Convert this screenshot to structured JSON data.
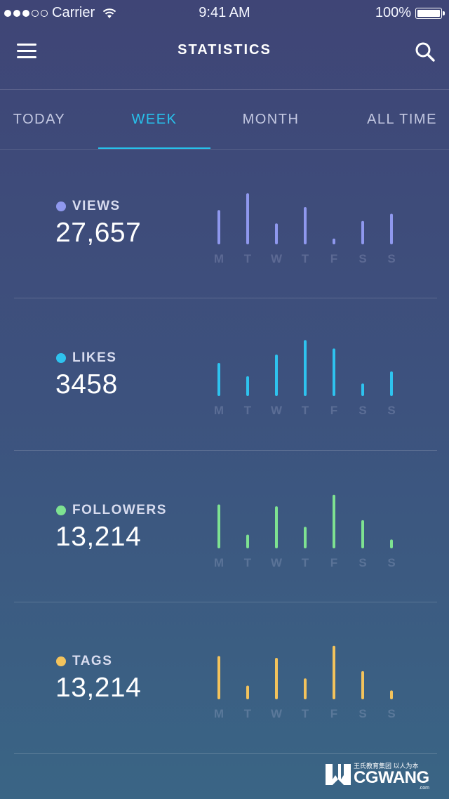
{
  "status": {
    "carrier": "Carrier",
    "time": "9:41 AM",
    "battery": "100%"
  },
  "header": {
    "title": "STATISTICS",
    "menu_icon": "hamburger-menu-icon",
    "search_icon": "search-icon"
  },
  "tabs": [
    {
      "label": "TODAY",
      "active": false
    },
    {
      "label": "WEEK",
      "active": true
    },
    {
      "label": "MONTH",
      "active": false
    },
    {
      "label": "ALL TIME",
      "active": false
    }
  ],
  "colors": {
    "active_tab": "#27c2ec"
  },
  "stats": [
    {
      "label": "VIEWS",
      "value": "27,657",
      "color": "#8f98ee",
      "highlight": 1
    },
    {
      "label": "LIKES",
      "value": "3458",
      "color": "#2ec3ef",
      "highlight": 3
    },
    {
      "label": "FOLLOWERS",
      "value": "13,214",
      "color": "#7ee291",
      "highlight": 4
    },
    {
      "label": "TAGS",
      "value": "13,214",
      "color": "#f3c35c",
      "highlight": 4
    }
  ],
  "chart_data": [
    {
      "type": "bar",
      "title": "VIEWS",
      "categories": [
        "M",
        "T",
        "W",
        "T",
        "F",
        "S",
        "S"
      ],
      "values": [
        52,
        80,
        30,
        57,
        5,
        34,
        46
      ],
      "ylim": [
        0,
        100
      ]
    },
    {
      "type": "bar",
      "title": "LIKES",
      "categories": [
        "M",
        "T",
        "W",
        "T",
        "F",
        "S",
        "S"
      ],
      "values": [
        50,
        28,
        64,
        88,
        74,
        16,
        36
      ],
      "ylim": [
        0,
        100
      ]
    },
    {
      "type": "bar",
      "title": "FOLLOWERS",
      "categories": [
        "M",
        "T",
        "W",
        "T",
        "F",
        "S",
        "S"
      ],
      "values": [
        68,
        18,
        65,
        31,
        84,
        42,
        10
      ],
      "ylim": [
        0,
        100
      ]
    },
    {
      "type": "bar",
      "title": "TAGS",
      "categories": [
        "M",
        "T",
        "W",
        "T",
        "F",
        "S",
        "S"
      ],
      "values": [
        67,
        18,
        64,
        30,
        84,
        42,
        10
      ],
      "ylim": [
        0,
        100
      ]
    }
  ],
  "watermark": {
    "cn": "王氏教育集团 以人为本",
    "en": "CGWANG",
    "suffix": ".com"
  }
}
